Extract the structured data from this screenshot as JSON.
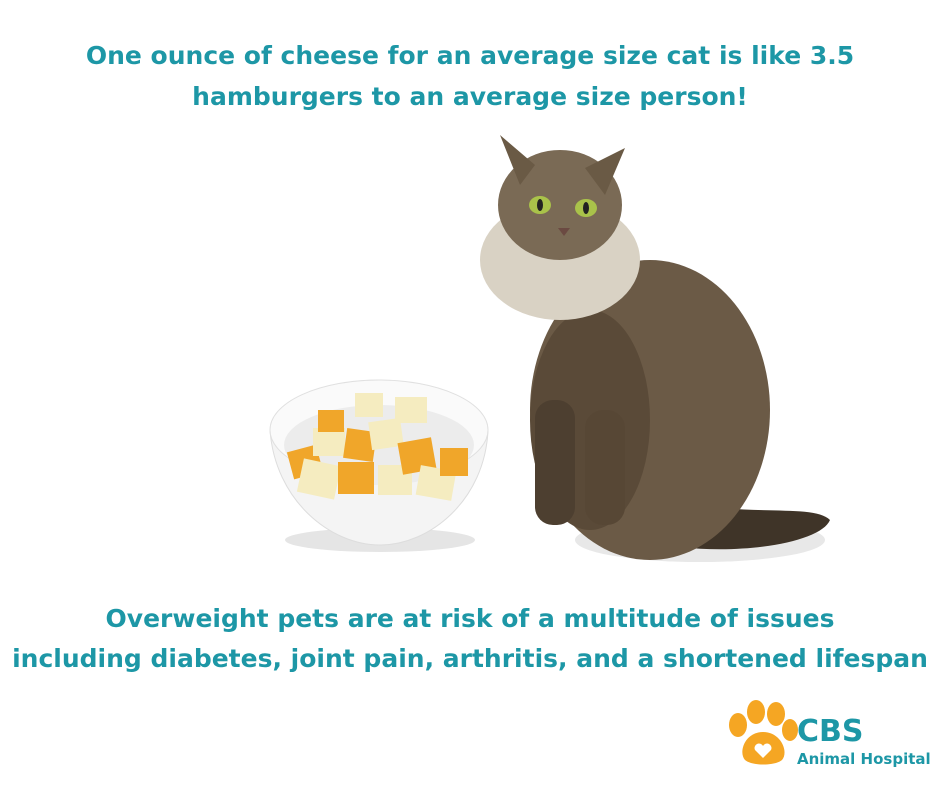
{
  "header": {
    "lines": [
      "One ounce of cheese for an average size cat is like 3.5",
      "hamburgers to an average size person!"
    ]
  },
  "footer": {
    "lines": [
      "Overweight pets are at risk of a multitude of issues",
      "including diabetes, joint pain, arthritis, and a shortened lifespan"
    ]
  },
  "logo": {
    "name": "CBS",
    "subtitle": "Animal Hospital"
  }
}
